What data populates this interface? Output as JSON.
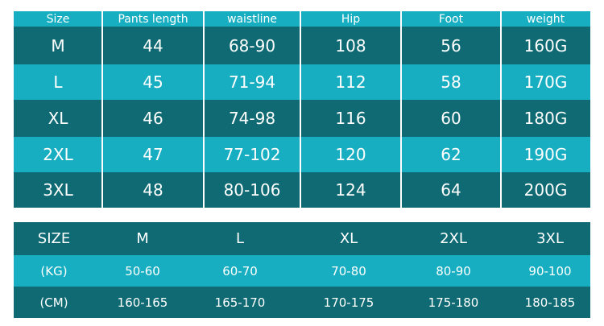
{
  "size_table": {
    "header": [
      "Size",
      "Pants length",
      "waistline",
      "Hip",
      "Foot",
      "weight"
    ],
    "rows": [
      [
        "M",
        "44",
        "68-90",
        "108",
        "56",
        "160G"
      ],
      [
        "L",
        "45",
        "71-94",
        "112",
        "58",
        "170G"
      ],
      [
        "XL",
        "46",
        "74-98",
        "116",
        "60",
        "180G"
      ],
      [
        "2XL",
        "47",
        "77-102",
        "120",
        "62",
        "190G"
      ],
      [
        "3XL",
        "48",
        "80-106",
        "124",
        "64",
        "200G"
      ]
    ]
  },
  "weight_table": {
    "header": [
      "SIZE",
      "M",
      "L",
      "XL",
      "2XL",
      "3XL"
    ],
    "rows": [
      [
        "(KG)",
        "50-60",
        "60-70",
        "70-80",
        "80-90",
        "90-100"
      ],
      [
        "(CM)",
        "160-165",
        "165-170",
        "170-175",
        "175-180",
        "180-185"
      ]
    ]
  }
}
